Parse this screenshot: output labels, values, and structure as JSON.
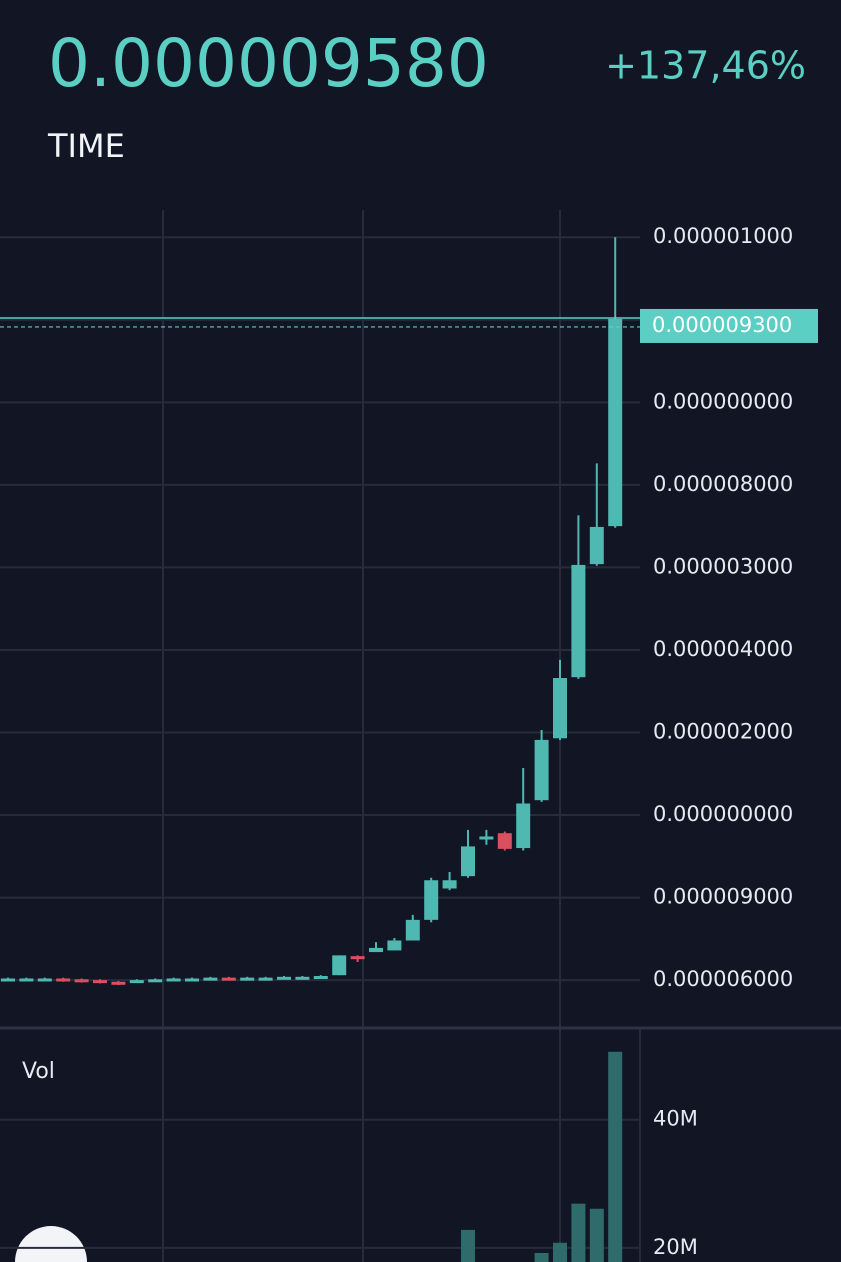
{
  "header": {
    "price": "0.000009580",
    "change": "+137,46%",
    "interval": "TIME"
  },
  "chart_data": [
    {
      "type": "candlestick",
      "categories": [
        null,
        null,
        null,
        null,
        null,
        null,
        null,
        null,
        null,
        null,
        null,
        null,
        null,
        null,
        null,
        null,
        null,
        null,
        null,
        null,
        null,
        null,
        null,
        null,
        null,
        null,
        null,
        null,
        null,
        null,
        null,
        null,
        null,
        null
      ],
      "open": [
        0.0,
        0.01,
        0.0,
        0.02,
        0.01,
        0.0,
        -0.02,
        -0.02,
        -0.01,
        0.0,
        0.0,
        0.01,
        0.03,
        0.01,
        0.01,
        0.02,
        0.02,
        0.03,
        0.06,
        0.29,
        0.34,
        0.36,
        0.48,
        0.73,
        1.11,
        1.26,
        1.72,
        1.78,
        1.6,
        2.18,
        2.93,
        3.67,
        5.04,
        5.5
      ],
      "high": [
        0.03,
        0.03,
        0.03,
        0.03,
        0.02,
        0.01,
        -0.01,
        0.01,
        0.02,
        0.03,
        0.03,
        0.04,
        0.04,
        0.04,
        0.04,
        0.05,
        0.05,
        0.06,
        0.3,
        0.3,
        0.46,
        0.51,
        0.79,
        1.24,
        1.31,
        1.82,
        1.82,
        1.8,
        2.57,
        3.03,
        3.88,
        5.63,
        6.26,
        9.0
      ],
      "low": [
        -0.01,
        0.0,
        -0.01,
        -0.02,
        -0.03,
        -0.04,
        -0.06,
        -0.03,
        -0.02,
        -0.01,
        -0.01,
        0.0,
        0.0,
        0.0,
        0.0,
        0.01,
        0.01,
        0.02,
        0.06,
        0.22,
        0.34,
        0.36,
        0.48,
        0.7,
        1.09,
        1.24,
        1.64,
        1.57,
        1.57,
        2.16,
        2.91,
        3.65,
        5.02,
        5.48
      ],
      "close": [
        0.02,
        0.02,
        0.02,
        -0.01,
        -0.02,
        -0.03,
        -0.05,
        0.0,
        0.01,
        0.02,
        0.02,
        0.03,
        0.01,
        0.03,
        0.03,
        0.04,
        0.04,
        0.05,
        0.3,
        0.27,
        0.39,
        0.48,
        0.73,
        1.21,
        1.21,
        1.62,
        1.74,
        1.59,
        2.14,
        2.91,
        3.66,
        5.03,
        5.49,
        8.01
      ],
      "up_color": "#4fb8b0",
      "down_color": "#d9515f",
      "ylim": [
        -0.58,
        9.33
      ],
      "yticks": [
        {
          "value": 0,
          "label": "0.000006000"
        },
        {
          "value": 1,
          "label": "0.000009000"
        },
        {
          "value": 2,
          "label": "0.000000000"
        },
        {
          "value": 3,
          "label": "0.000002000"
        },
        {
          "value": 4,
          "label": "0.000004000"
        },
        {
          "value": 5,
          "label": "0.000003000"
        },
        {
          "value": 6,
          "label": "0.000008000"
        },
        {
          "value": 7,
          "label": "0.000000000"
        },
        8,
        {
          "value": 9,
          "label": "0.000001000"
        }
      ],
      "last_price": {
        "value": 8.01,
        "label": "0.000009300"
      },
      "grid": true
    },
    {
      "type": "bar",
      "title": "Vol",
      "categories": [
        null,
        null,
        null,
        null,
        null,
        null,
        null,
        null,
        null,
        null,
        null,
        null,
        null,
        null,
        null,
        null,
        null,
        null,
        null,
        null,
        null,
        null,
        null,
        null,
        null,
        null,
        null,
        null,
        null,
        null,
        null,
        null,
        null,
        null
      ],
      "values": [
        null,
        null,
        null,
        null,
        null,
        null,
        null,
        null,
        null,
        null,
        null,
        null,
        null,
        null,
        null,
        null,
        null,
        null,
        null,
        null,
        null,
        null,
        null,
        null,
        null,
        22800000,
        null,
        null,
        null,
        19200000,
        20800000,
        26900000,
        26100000,
        50600000
      ],
      "color": "#2f6b6a",
      "ylim": [
        0,
        54000000
      ],
      "yticks": [
        {
          "value": 20000000,
          "label": "20M"
        },
        {
          "value": 40000000,
          "label": "40M"
        }
      ],
      "grid": true
    }
  ]
}
